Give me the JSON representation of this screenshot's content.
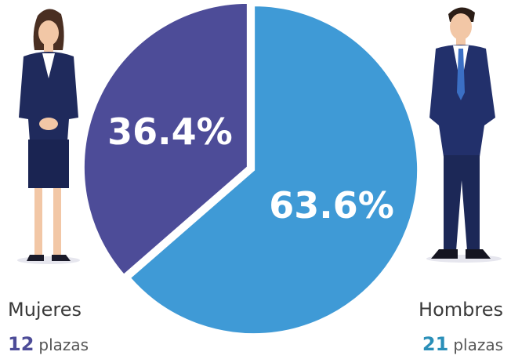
{
  "chart_data": {
    "type": "pie",
    "categories": [
      "Hombres",
      "Mujeres"
    ],
    "values": [
      63.6,
      36.4
    ],
    "value_labels": [
      "63.6%",
      "36.4%"
    ],
    "colors": [
      "#3f9ad6",
      "#4d4c98"
    ],
    "counts": [
      21,
      12
    ],
    "count_colors": [
      "#2a8fb8",
      "#4d4c98"
    ],
    "count_unit": "plazas"
  }
}
